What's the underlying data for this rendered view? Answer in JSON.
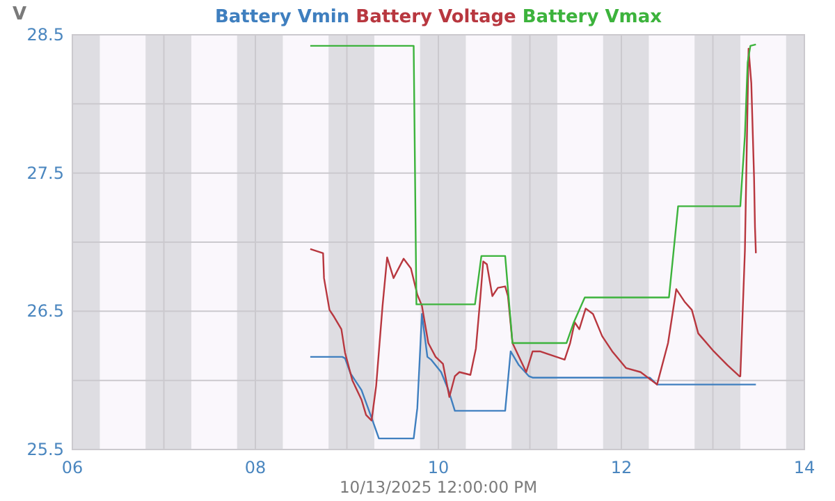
{
  "chart_data": {
    "type": "line",
    "ylabel": "V",
    "annotations": [
      "10/13/2025 12:00:00 PM"
    ],
    "xlim": [
      6,
      14
    ],
    "xticks": [
      {
        "value": 6,
        "label": "06"
      },
      {
        "value": 7,
        "label": null
      },
      {
        "value": 8,
        "label": "08"
      },
      {
        "value": 9,
        "label": null
      },
      {
        "value": 10,
        "label": "10"
      },
      {
        "value": 11,
        "label": null
      },
      {
        "value": 12,
        "label": "12"
      },
      {
        "value": 13,
        "label": null
      },
      {
        "value": 14,
        "label": "14"
      }
    ],
    "ylim": [
      25.5,
      28.5
    ],
    "yticks": [
      25.5,
      {
        "value": 26,
        "label": null
      },
      26.5,
      {
        "value": 27,
        "label": null
      },
      27.5,
      {
        "value": 28,
        "label": null
      },
      28.5
    ],
    "grid": true,
    "legend": "top",
    "marker": "none",
    "line_style": "solid",
    "bands": [
      {
        "axis": "x",
        "from": 6.0,
        "to": 6.3,
        "color": "#dedde2"
      },
      {
        "axis": "x",
        "from": 6.8,
        "to": 7.3,
        "color": "#dedde2"
      },
      {
        "axis": "x",
        "from": 7.8,
        "to": 8.3,
        "color": "#dedde2"
      },
      {
        "axis": "x",
        "from": 8.8,
        "to": 9.3,
        "color": "#dedde2"
      },
      {
        "axis": "x",
        "from": 9.8,
        "to": 10.3,
        "color": "#dedde2"
      },
      {
        "axis": "x",
        "from": 10.8,
        "to": 11.3,
        "color": "#dedde2"
      },
      {
        "axis": "x",
        "from": 11.8,
        "to": 12.3,
        "color": "#dedde2"
      },
      {
        "axis": "x",
        "from": 12.8,
        "to": 13.3,
        "color": "#dedde2"
      },
      {
        "axis": "x",
        "from": 13.8,
        "to": 14.0,
        "color": "#dedde2"
      }
    ],
    "series": [
      {
        "name": "Battery Vmin",
        "color": "#3f7fbf",
        "x": [
          8.6,
          8.95,
          8.98,
          9.04,
          9.16,
          9.27,
          9.35,
          9.73,
          9.77,
          9.82,
          9.88,
          9.92,
          10.03,
          10.11,
          10.18,
          10.73,
          10.79,
          10.88,
          10.99,
          11.03,
          12.31,
          12.39,
          13.47
        ],
        "values": [
          26.17,
          26.17,
          26.16,
          26.05,
          25.93,
          25.73,
          25.58,
          25.58,
          25.8,
          26.48,
          26.17,
          26.15,
          26.06,
          25.93,
          25.78,
          25.78,
          26.21,
          26.11,
          26.03,
          26.02,
          26.02,
          25.97,
          25.97
        ]
      },
      {
        "name": "Battery Voltage",
        "color": "#b8373f",
        "x": [
          8.6,
          8.74,
          8.75,
          8.81,
          8.86,
          8.94,
          8.98,
          9.06,
          9.16,
          9.21,
          9.27,
          9.32,
          9.39,
          9.44,
          9.51,
          9.62,
          9.7,
          9.77,
          9.82,
          9.89,
          9.97,
          10.05,
          10.12,
          10.18,
          10.23,
          10.35,
          10.41,
          10.46,
          10.49,
          10.53,
          10.59,
          10.65,
          10.73,
          10.76,
          10.81,
          10.96,
          11.03,
          11.11,
          11.29,
          11.38,
          11.44,
          11.49,
          11.54,
          11.61,
          11.69,
          11.79,
          11.9,
          12.05,
          12.21,
          12.39,
          12.51,
          12.6,
          12.69,
          12.77,
          12.84,
          13.01,
          13.16,
          13.29,
          13.3,
          13.35,
          13.39,
          13.42,
          13.45,
          13.46,
          13.47
        ],
        "values": [
          26.95,
          26.92,
          26.74,
          26.51,
          26.46,
          26.37,
          26.2,
          26.0,
          25.86,
          25.75,
          25.71,
          25.96,
          26.54,
          26.89,
          26.74,
          26.88,
          26.81,
          26.62,
          26.54,
          26.27,
          26.17,
          26.12,
          25.88,
          26.03,
          26.06,
          26.04,
          26.23,
          26.61,
          26.86,
          26.84,
          26.61,
          26.67,
          26.68,
          26.61,
          26.27,
          26.06,
          26.21,
          26.21,
          26.17,
          26.15,
          26.27,
          26.42,
          26.37,
          26.52,
          26.48,
          26.32,
          26.21,
          26.09,
          26.06,
          25.97,
          26.27,
          26.66,
          26.57,
          26.51,
          26.34,
          26.21,
          26.11,
          26.03,
          26.03,
          26.94,
          28.4,
          28.15,
          27.47,
          27.11,
          26.92
        ]
      },
      {
        "name": "Battery Vmax",
        "color": "#3cb33c",
        "x": [
          8.6,
          9.73,
          9.76,
          10.4,
          10.47,
          10.73,
          10.81,
          11.4,
          11.48,
          11.6,
          12.52,
          12.62,
          13.3,
          13.32,
          13.35,
          13.38,
          13.41,
          13.47
        ],
        "values": [
          28.42,
          28.42,
          26.55,
          26.55,
          26.9,
          26.9,
          26.27,
          26.27,
          26.42,
          26.6,
          26.6,
          27.26,
          27.26,
          27.47,
          27.77,
          28.3,
          28.42,
          28.43
        ]
      }
    ]
  }
}
